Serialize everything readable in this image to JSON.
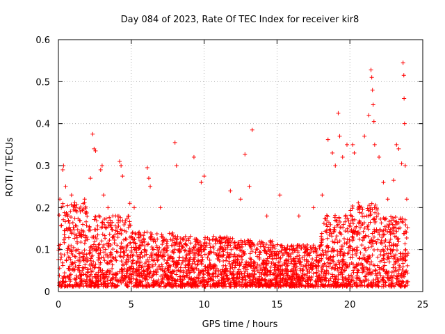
{
  "chart_data": {
    "type": "scatter",
    "title": "Day 084 of 2023, Rate Of TEC Index for receiver kir8",
    "xlabel": "GPS time / hours",
    "ylabel": "ROTI / TECUs",
    "xlim": [
      0,
      25
    ],
    "ylim": [
      0,
      0.6
    ],
    "xticks": [
      "0",
      "5",
      "10",
      "15",
      "20",
      "25"
    ],
    "yticks": [
      "0",
      "0.1",
      "0.2",
      "0.3",
      "0.4",
      "0.5",
      "0.6"
    ],
    "grid": true,
    "marker": "plus",
    "color": "#ff0000",
    "series": [
      {
        "points": [
          [
            0.1,
            0.22
          ],
          [
            0.3,
            0.29
          ],
          [
            0.35,
            0.3
          ],
          [
            0.5,
            0.25
          ],
          [
            0.9,
            0.23
          ],
          [
            1.2,
            0.2
          ],
          [
            1.5,
            0.19
          ],
          [
            1.8,
            0.22
          ],
          [
            2.2,
            0.27
          ],
          [
            2.35,
            0.375
          ],
          [
            2.45,
            0.34
          ],
          [
            2.55,
            0.335
          ],
          [
            2.9,
            0.29
          ],
          [
            3.0,
            0.3
          ],
          [
            3.1,
            0.23
          ],
          [
            3.4,
            0.2
          ],
          [
            4.2,
            0.31
          ],
          [
            4.3,
            0.3
          ],
          [
            4.4,
            0.275
          ],
          [
            4.9,
            0.21
          ],
          [
            5.2,
            0.2
          ],
          [
            6.1,
            0.295
          ],
          [
            6.2,
            0.27
          ],
          [
            6.3,
            0.25
          ],
          [
            7.0,
            0.2
          ],
          [
            8.0,
            0.355
          ],
          [
            8.1,
            0.3
          ],
          [
            9.3,
            0.32
          ],
          [
            9.8,
            0.26
          ],
          [
            10.0,
            0.275
          ],
          [
            11.8,
            0.24
          ],
          [
            12.5,
            0.22
          ],
          [
            12.8,
            0.327
          ],
          [
            13.1,
            0.25
          ],
          [
            13.3,
            0.385
          ],
          [
            14.3,
            0.18
          ],
          [
            15.2,
            0.23
          ],
          [
            16.5,
            0.18
          ],
          [
            17.5,
            0.2
          ],
          [
            18.1,
            0.23
          ],
          [
            18.5,
            0.362
          ],
          [
            18.8,
            0.33
          ],
          [
            19.0,
            0.3
          ],
          [
            19.2,
            0.425
          ],
          [
            19.3,
            0.37
          ],
          [
            19.5,
            0.32
          ],
          [
            19.8,
            0.35
          ],
          [
            20.2,
            0.35
          ],
          [
            20.3,
            0.33
          ],
          [
            21.0,
            0.37
          ],
          [
            21.3,
            0.42
          ],
          [
            21.45,
            0.528
          ],
          [
            21.5,
            0.51
          ],
          [
            21.55,
            0.48
          ],
          [
            21.6,
            0.445
          ],
          [
            21.65,
            0.405
          ],
          [
            21.7,
            0.35
          ],
          [
            22.0,
            0.32
          ],
          [
            22.3,
            0.26
          ],
          [
            22.6,
            0.22
          ],
          [
            23.0,
            0.265
          ],
          [
            23.2,
            0.35
          ],
          [
            23.35,
            0.34
          ],
          [
            23.55,
            0.305
          ],
          [
            23.65,
            0.545
          ],
          [
            23.7,
            0.515
          ],
          [
            23.72,
            0.46
          ],
          [
            23.75,
            0.4
          ],
          [
            23.8,
            0.3
          ],
          [
            23.9,
            0.22
          ]
        ]
      }
    ]
  }
}
